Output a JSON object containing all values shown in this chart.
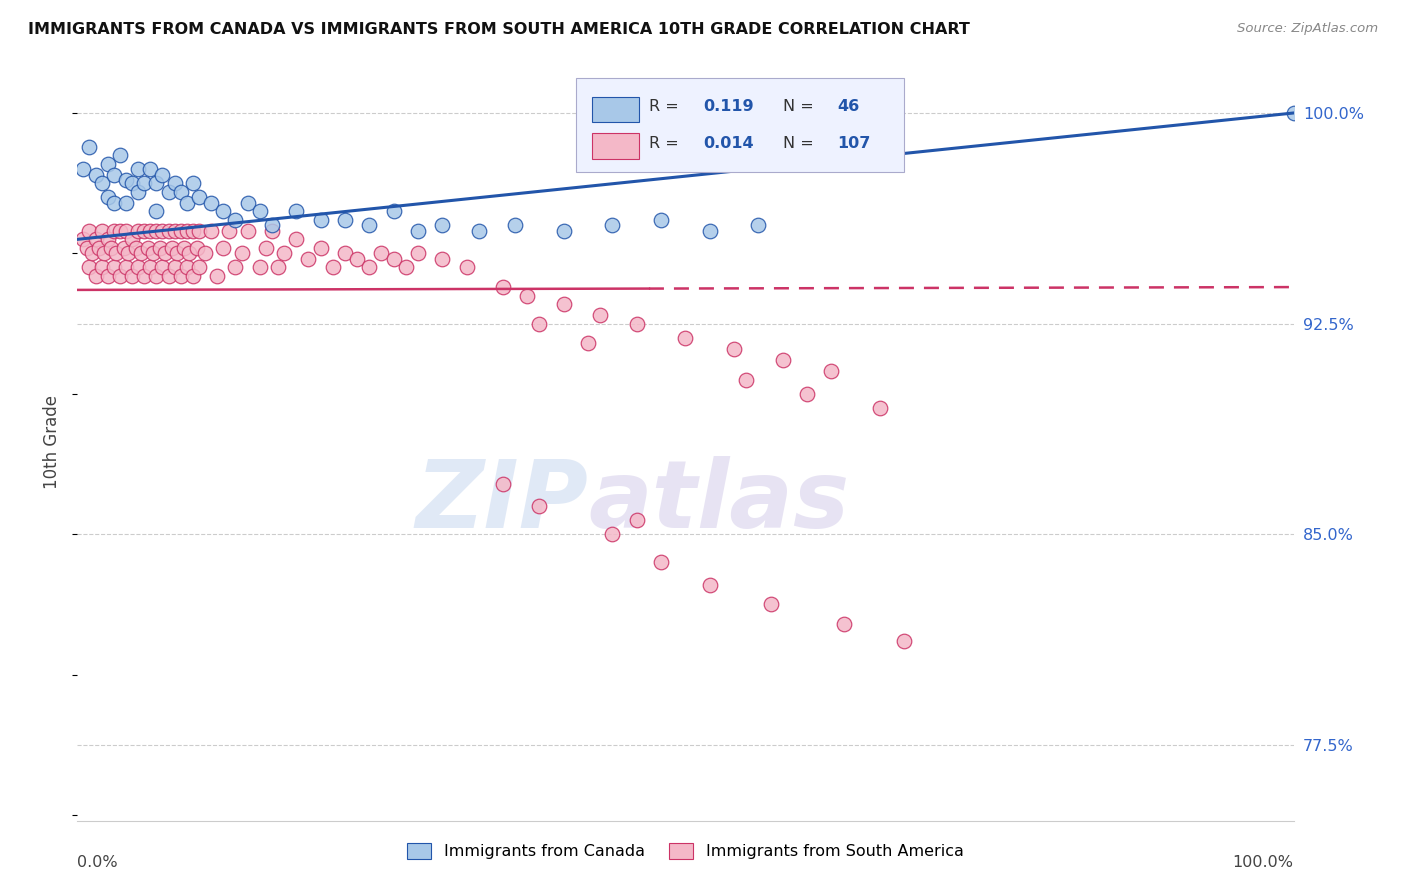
{
  "title": "IMMIGRANTS FROM CANADA VS IMMIGRANTS FROM SOUTH AMERICA 10TH GRADE CORRELATION CHART",
  "source": "Source: ZipAtlas.com",
  "ylabel": "10th Grade",
  "watermark_zip": "ZIP",
  "watermark_atlas": "atlas",
  "right_yticks": [
    0.775,
    0.85,
    0.925,
    1.0
  ],
  "right_yticklabels": [
    "77.5%",
    "85.0%",
    "92.5%",
    "100.0%"
  ],
  "xlim": [
    0.0,
    1.0
  ],
  "ylim": [
    0.748,
    1.018
  ],
  "canada_color": "#a8c8e8",
  "south_color": "#f4b8c8",
  "trend_canada_color": "#2255aa",
  "trend_south_color": "#cc3366",
  "canada_x": [
    0.005,
    0.01,
    0.015,
    0.02,
    0.025,
    0.025,
    0.03,
    0.03,
    0.035,
    0.04,
    0.04,
    0.045,
    0.05,
    0.05,
    0.055,
    0.06,
    0.065,
    0.065,
    0.07,
    0.075,
    0.08,
    0.085,
    0.09,
    0.095,
    0.1,
    0.11,
    0.12,
    0.13,
    0.14,
    0.15,
    0.16,
    0.18,
    0.2,
    0.22,
    0.24,
    0.26,
    0.28,
    0.3,
    0.33,
    0.36,
    0.4,
    0.44,
    0.48,
    0.52,
    0.56,
    1.0
  ],
  "canada_y": [
    0.98,
    0.988,
    0.978,
    0.975,
    0.982,
    0.97,
    0.978,
    0.968,
    0.985,
    0.976,
    0.968,
    0.975,
    0.98,
    0.972,
    0.975,
    0.98,
    0.975,
    0.965,
    0.978,
    0.972,
    0.975,
    0.972,
    0.968,
    0.975,
    0.97,
    0.968,
    0.965,
    0.962,
    0.968,
    0.965,
    0.96,
    0.965,
    0.962,
    0.962,
    0.96,
    0.965,
    0.958,
    0.96,
    0.958,
    0.96,
    0.958,
    0.96,
    0.962,
    0.958,
    0.96,
    1.0
  ],
  "south_x": [
    0.005,
    0.008,
    0.01,
    0.01,
    0.012,
    0.015,
    0.015,
    0.018,
    0.02,
    0.02,
    0.022,
    0.025,
    0.025,
    0.028,
    0.03,
    0.03,
    0.032,
    0.035,
    0.035,
    0.038,
    0.04,
    0.04,
    0.042,
    0.045,
    0.045,
    0.048,
    0.05,
    0.05,
    0.052,
    0.055,
    0.055,
    0.058,
    0.06,
    0.06,
    0.062,
    0.065,
    0.065,
    0.068,
    0.07,
    0.07,
    0.072,
    0.075,
    0.075,
    0.078,
    0.08,
    0.08,
    0.082,
    0.085,
    0.085,
    0.088,
    0.09,
    0.09,
    0.092,
    0.095,
    0.095,
    0.098,
    0.1,
    0.1,
    0.105,
    0.11,
    0.115,
    0.12,
    0.125,
    0.13,
    0.135,
    0.14,
    0.15,
    0.155,
    0.16,
    0.165,
    0.17,
    0.18,
    0.19,
    0.2,
    0.21,
    0.22,
    0.23,
    0.24,
    0.25,
    0.26,
    0.27,
    0.28,
    0.3,
    0.32,
    0.35,
    0.37,
    0.4,
    0.43,
    0.46,
    0.5,
    0.54,
    0.58,
    0.62,
    0.38,
    0.42,
    0.55,
    0.6,
    0.66,
    0.38,
    0.44,
    0.48,
    0.52,
    0.57,
    0.63,
    0.68,
    0.35,
    0.46
  ],
  "south_y": [
    0.955,
    0.952,
    0.958,
    0.945,
    0.95,
    0.955,
    0.942,
    0.952,
    0.958,
    0.945,
    0.95,
    0.955,
    0.942,
    0.952,
    0.958,
    0.945,
    0.95,
    0.958,
    0.942,
    0.952,
    0.958,
    0.945,
    0.95,
    0.955,
    0.942,
    0.952,
    0.958,
    0.945,
    0.95,
    0.958,
    0.942,
    0.952,
    0.958,
    0.945,
    0.95,
    0.958,
    0.942,
    0.952,
    0.958,
    0.945,
    0.95,
    0.958,
    0.942,
    0.952,
    0.958,
    0.945,
    0.95,
    0.958,
    0.942,
    0.952,
    0.958,
    0.945,
    0.95,
    0.958,
    0.942,
    0.952,
    0.958,
    0.945,
    0.95,
    0.958,
    0.942,
    0.952,
    0.958,
    0.945,
    0.95,
    0.958,
    0.945,
    0.952,
    0.958,
    0.945,
    0.95,
    0.955,
    0.948,
    0.952,
    0.945,
    0.95,
    0.948,
    0.945,
    0.95,
    0.948,
    0.945,
    0.95,
    0.948,
    0.945,
    0.938,
    0.935,
    0.932,
    0.928,
    0.925,
    0.92,
    0.916,
    0.912,
    0.908,
    0.925,
    0.918,
    0.905,
    0.9,
    0.895,
    0.86,
    0.85,
    0.84,
    0.832,
    0.825,
    0.818,
    0.812,
    0.868,
    0.855
  ],
  "trend_canada_start_y": 0.955,
  "trend_canada_end_y": 1.0,
  "trend_south_start_y": 0.937,
  "trend_south_end_y": 0.938,
  "trend_south_solid_end_x": 0.47
}
